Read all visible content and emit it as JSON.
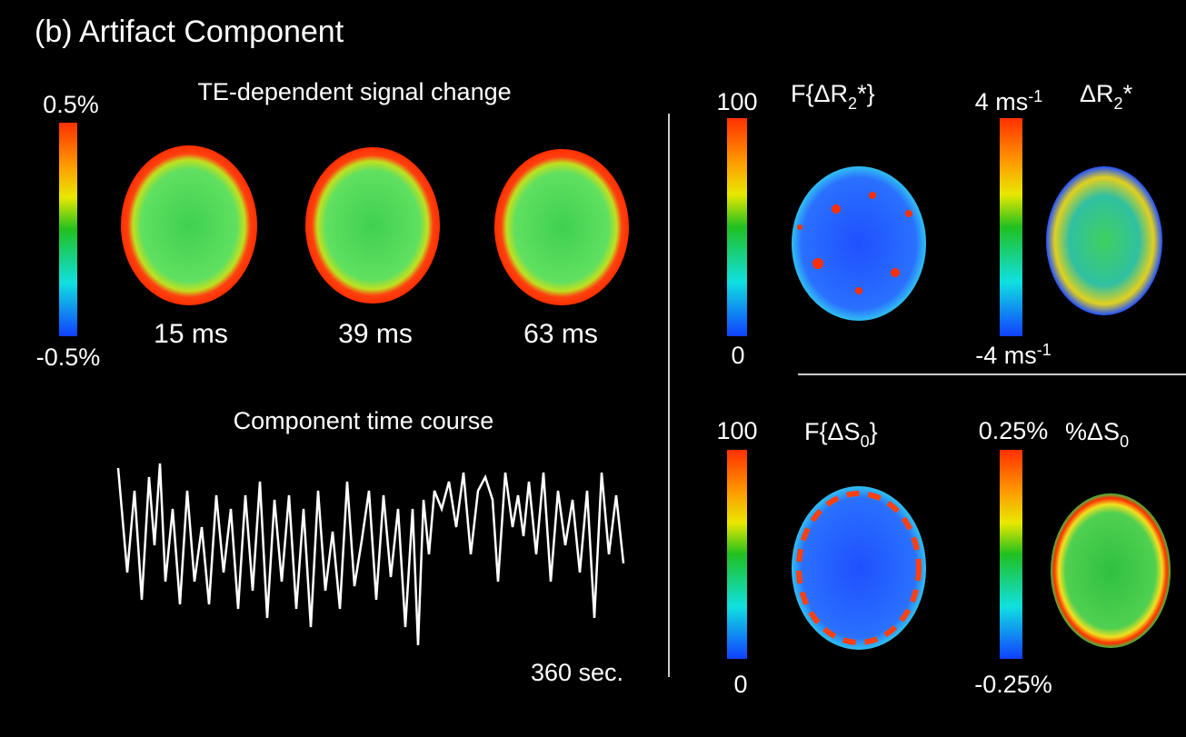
{
  "header": {
    "title": "(b) Artifact Component"
  },
  "left_panel": {
    "title": "TE-dependent signal change",
    "colorbar": {
      "max_label": "0.5%",
      "min_label": "-0.5%"
    },
    "echo_labels": [
      "15 ms",
      "39 ms",
      "63 ms"
    ],
    "time_course": {
      "title": "Component time course",
      "duration_label": "360 sec."
    }
  },
  "right_panels": [
    {
      "title_parts": [
        "F{ΔR",
        "2",
        "*}"
      ],
      "colorbar": {
        "max_label": "100",
        "min_label": "0"
      }
    },
    {
      "title_parts": [
        "ΔR",
        "2",
        "*"
      ],
      "colorbar": {
        "max_parts": [
          "4 ms",
          "-1"
        ],
        "min_parts": [
          "-4 ms",
          "-1"
        ]
      }
    },
    {
      "title_parts": [
        "F{ΔS",
        "0",
        "}"
      ],
      "colorbar": {
        "max_label": "100",
        "min_label": "0"
      }
    },
    {
      "title_parts": [
        "%ΔS",
        "0"
      ],
      "colorbar": {
        "max_label": "0.25%",
        "min_label": "-0.25%"
      }
    }
  ]
}
